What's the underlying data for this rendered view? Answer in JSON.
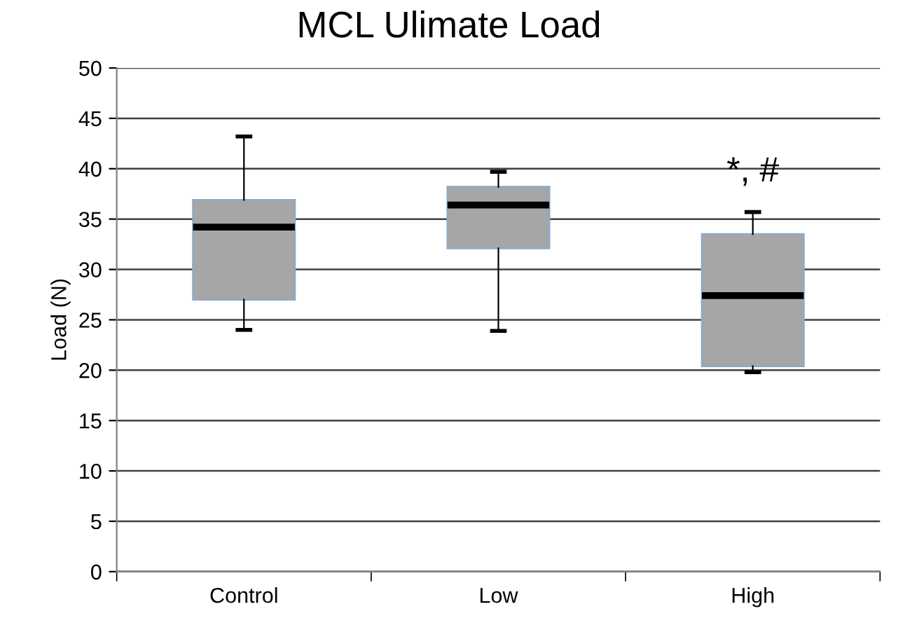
{
  "chart_data": {
    "type": "box",
    "title": "MCL Ulimate Load",
    "ylabel": "Load (N)",
    "categories": [
      "Control",
      "Low",
      "High"
    ],
    "boxes": [
      {
        "low": 24.0,
        "q1": 27.0,
        "median": 34.2,
        "q3": 36.9,
        "high": 43.2
      },
      {
        "low": 23.9,
        "q1": 32.1,
        "median": 36.4,
        "q3": 38.2,
        "high": 39.7
      },
      {
        "low": 19.8,
        "q1": 20.4,
        "median": 27.4,
        "q3": 33.5,
        "high": 35.7
      }
    ],
    "color": "#a6a6a6",
    "ylim": [
      0,
      50
    ],
    "yticks": [
      0,
      5,
      10,
      15,
      20,
      25,
      30,
      35,
      40,
      45,
      50
    ],
    "grid": "y",
    "annotations": [
      "*, #"
    ]
  }
}
